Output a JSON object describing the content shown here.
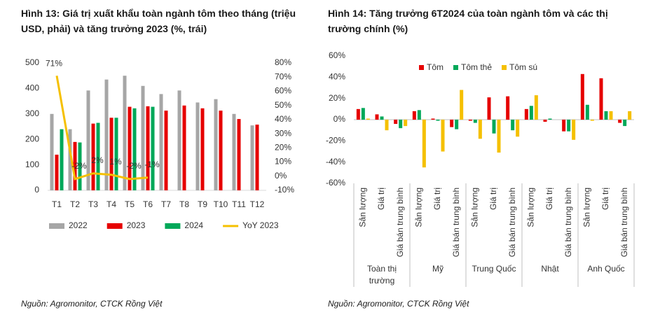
{
  "chart_data": [
    {
      "type": "bar",
      "title": "Hình 13: Giá trị xuất khẩu toàn ngành tôm theo tháng (triệu USD, phải) và tăng trưởng 2023 (%, trái)",
      "source": "Nguồn: Agromonitor, CTCK Rồng Việt",
      "categories": [
        "T1",
        "T2",
        "T3",
        "T4",
        "T5",
        "T6",
        "T7",
        "T8",
        "T9",
        "T10",
        "T11",
        "T12"
      ],
      "ylim": [
        0,
        500
      ],
      "yticks": [
        0,
        100,
        200,
        300,
        400,
        500
      ],
      "y2lim": [
        -10,
        80
      ],
      "y2ticks": [
        {
          "value": 80,
          "label": "80%"
        },
        {
          "value": 70,
          "label": "70%"
        },
        {
          "value": 60,
          "label": "60%"
        },
        {
          "value": 50,
          "label": "50%"
        },
        {
          "value": 40,
          "label": "40%"
        },
        {
          "value": 30,
          "label": "30%"
        },
        {
          "value": 20,
          "label": "20%"
        },
        {
          "value": 10,
          "label": "10%"
        },
        {
          "value": 0,
          "label": "0%"
        },
        {
          "value": -10,
          "label": "-10%"
        }
      ],
      "legend": "bottom",
      "series": [
        {
          "name": "2022",
          "color": "#a6a6a6",
          "values": [
            300,
            240,
            392,
            435,
            450,
            410,
            378,
            392,
            345,
            358,
            300,
            255
          ]
        },
        {
          "name": "2023",
          "color": "#e60000",
          "values": [
            140,
            190,
            262,
            285,
            328,
            330,
            313,
            333,
            322,
            313,
            280,
            258
          ]
        },
        {
          "name": "2024",
          "color": "#00a859",
          "values": [
            240,
            188,
            265,
            285,
            322,
            328,
            null,
            null,
            null,
            null,
            null,
            null
          ]
        },
        {
          "name": "YoY 2023",
          "color": "#f5c000",
          "type": "line",
          "axis": "y2",
          "values": [
            71,
            -2,
            2,
            1,
            -2,
            -1,
            null,
            null,
            null,
            null,
            null,
            null
          ],
          "value_labels": [
            "71%",
            "-2%",
            "2%",
            "1%",
            "-2%",
            "-1%",
            null,
            null,
            null,
            null,
            null,
            null
          ]
        }
      ]
    },
    {
      "type": "bar",
      "title": "Hình 14: Tăng trưởng 6T2024 của toàn ngành tôm và các thị trường chính (%)",
      "source": "Nguồn: Agromonitor, CTCK Rồng Việt",
      "groups": [
        {
          "name": "Toàn thị trường",
          "categories": [
            "Sản lượng",
            "Giá trị",
            "Giá bán trung bình"
          ]
        },
        {
          "name": "Mỹ",
          "categories": [
            "Sản lượng",
            "Giá trị",
            "Giá bán trung bình"
          ]
        },
        {
          "name": "Trung Quốc",
          "categories": [
            "Sản lượng",
            "Giá trị",
            "Giá bán trung bình"
          ]
        },
        {
          "name": "Nhật",
          "categories": [
            "Sản lượng",
            "Giá trị",
            "Giá bán trung bình"
          ]
        },
        {
          "name": "Anh Quốc",
          "categories": [
            "Sản lượng",
            "Giá trị",
            "Giá bán trung bình"
          ]
        }
      ],
      "ylim": [
        -60,
        60
      ],
      "yticks": [
        {
          "value": 60,
          "label": "60%"
        },
        {
          "value": 40,
          "label": "40%"
        },
        {
          "value": 20,
          "label": "20%"
        },
        {
          "value": 0,
          "label": "0%"
        },
        {
          "value": -20,
          "label": "-20%"
        },
        {
          "value": -40,
          "label": "-40%"
        },
        {
          "value": -60,
          "label": "-60%"
        }
      ],
      "legend": "top",
      "series": [
        {
          "name": "Tôm",
          "color": "#e60000",
          "values": [
            10,
            5,
            -4,
            8,
            1,
            -7,
            -1,
            21,
            22,
            10,
            -2,
            -11,
            43,
            39,
            -3
          ]
        },
        {
          "name": "Tôm thẻ",
          "color": "#00a859",
          "values": [
            11,
            3,
            -8,
            9,
            -1,
            -9,
            -3,
            -13,
            -10,
            13,
            1,
            -11,
            14,
            8,
            -6
          ]
        },
        {
          "name": "Tôm sú",
          "color": "#f5c000",
          "values": [
            1,
            -10,
            -6,
            -45,
            -30,
            28,
            -18,
            -31,
            -16,
            23,
            0,
            -19,
            -1,
            8,
            8
          ]
        }
      ]
    }
  ]
}
